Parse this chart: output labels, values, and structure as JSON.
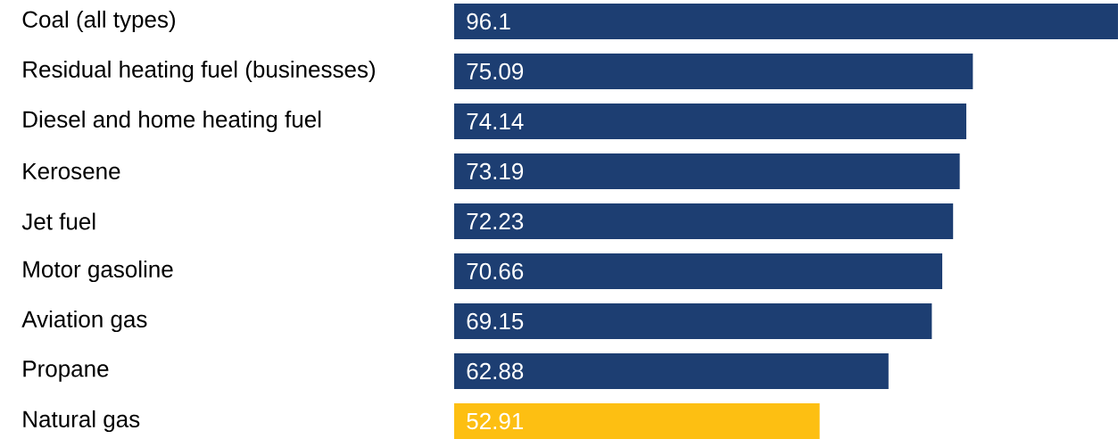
{
  "chart_data": {
    "type": "bar",
    "orientation": "horizontal",
    "data_labels": true,
    "categories": [
      "Coal (all types)",
      "Residual heating fuel (businesses)",
      "Diesel and home heating fuel",
      "Kerosene",
      "Jet fuel",
      "Motor gasoline",
      "Aviation gas",
      "Propane",
      "Natural gas"
    ],
    "values": [
      96.1,
      75.09,
      74.14,
      73.19,
      72.23,
      70.66,
      69.15,
      62.88,
      52.91
    ],
    "colors": [
      "#1d3e72",
      "#1d3e72",
      "#1d3e72",
      "#1d3e72",
      "#1d3e72",
      "#1d3e72",
      "#1d3e72",
      "#1d3e72",
      "#fdbf12"
    ]
  }
}
